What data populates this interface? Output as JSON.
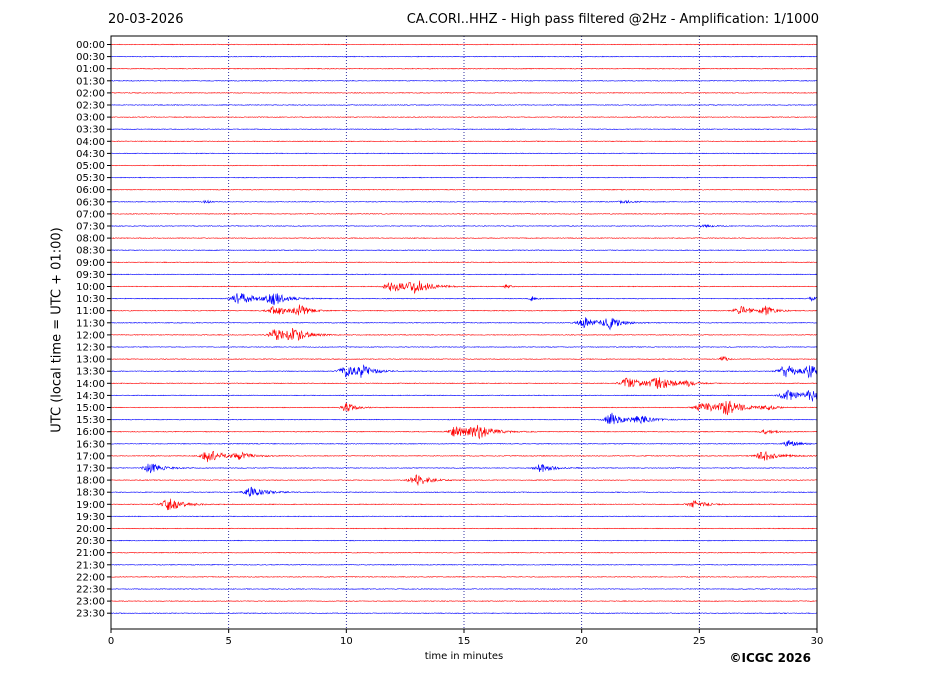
{
  "header": {
    "date": "20-03-2026",
    "title": "CA.CORI..HHZ - High pass filtered @2Hz - Amplification: 1/1000"
  },
  "footer": {
    "copyright": "©ICGC 2026"
  },
  "colors": {
    "trace_a": "#ff0000",
    "trace_b": "#0000ff",
    "axis": "#000000",
    "grid": "#00008b"
  },
  "chart_data": {
    "type": "line",
    "title": "CA.CORI..HHZ - High pass filtered @2Hz - Amplification: 1/1000",
    "xlabel": "time in minutes",
    "ylabel": "UTC (local time = UTC + 01:00)",
    "xlim": [
      0,
      30
    ],
    "x_ticks": [
      0,
      5,
      10,
      15,
      20,
      25,
      30
    ],
    "x_grid": [
      5,
      10,
      15,
      20,
      25
    ],
    "grid": "vertical dotted",
    "rows": [
      "00:00",
      "00:30",
      "01:00",
      "01:30",
      "02:00",
      "02:30",
      "03:00",
      "03:30",
      "04:00",
      "04:30",
      "05:00",
      "05:30",
      "06:00",
      "06:30",
      "07:00",
      "07:30",
      "08:00",
      "08:30",
      "09:00",
      "09:30",
      "10:00",
      "10:30",
      "11:00",
      "11:30",
      "12:00",
      "12:30",
      "13:00",
      "13:30",
      "14:00",
      "14:30",
      "15:00",
      "15:30",
      "16:00",
      "16:30",
      "17:00",
      "17:30",
      "18:00",
      "18:30",
      "19:00",
      "19:30",
      "20:00",
      "20:30",
      "21:00",
      "21:30",
      "22:00",
      "22:30",
      "23:00",
      "23:30"
    ],
    "row_colors": [
      "#ff0000",
      "#0000ff"
    ],
    "events": [
      {
        "row": "06:30",
        "minute": 4.0,
        "amp": 0.25,
        "dur": 0.3
      },
      {
        "row": "06:30",
        "minute": 21.8,
        "amp": 0.2,
        "dur": 0.6
      },
      {
        "row": "07:30",
        "minute": 25.2,
        "amp": 0.2,
        "dur": 0.6
      },
      {
        "row": "10:00",
        "minute": 12.0,
        "amp": 0.7,
        "dur": 1.0
      },
      {
        "row": "10:00",
        "minute": 13.0,
        "amp": 0.75,
        "dur": 1.0
      },
      {
        "row": "10:00",
        "minute": 16.8,
        "amp": 0.25,
        "dur": 0.3
      },
      {
        "row": "10:30",
        "minute": 5.5,
        "amp": 0.8,
        "dur": 1.0
      },
      {
        "row": "10:30",
        "minute": 6.9,
        "amp": 0.9,
        "dur": 0.8
      },
      {
        "row": "10:30",
        "minute": 17.9,
        "amp": 0.3,
        "dur": 0.3
      },
      {
        "row": "10:30",
        "minute": 29.8,
        "amp": 0.3,
        "dur": 0.4
      },
      {
        "row": "11:00",
        "minute": 7.0,
        "amp": 0.65,
        "dur": 0.9
      },
      {
        "row": "11:00",
        "minute": 8.0,
        "amp": 0.75,
        "dur": 0.6
      },
      {
        "row": "11:00",
        "minute": 26.8,
        "amp": 0.65,
        "dur": 0.8
      },
      {
        "row": "11:00",
        "minute": 27.8,
        "amp": 0.55,
        "dur": 0.6
      },
      {
        "row": "11:30",
        "minute": 20.2,
        "amp": 0.7,
        "dur": 1.0
      },
      {
        "row": "11:30",
        "minute": 21.2,
        "amp": 0.75,
        "dur": 0.7
      },
      {
        "row": "12:00",
        "minute": 7.0,
        "amp": 0.85,
        "dur": 0.8
      },
      {
        "row": "12:00",
        "minute": 7.8,
        "amp": 0.75,
        "dur": 0.9
      },
      {
        "row": "13:00",
        "minute": 26.0,
        "amp": 0.45,
        "dur": 0.3
      },
      {
        "row": "13:30",
        "minute": 10.0,
        "amp": 0.8,
        "dur": 0.8
      },
      {
        "row": "13:30",
        "minute": 10.7,
        "amp": 0.7,
        "dur": 0.7
      },
      {
        "row": "13:30",
        "minute": 28.7,
        "amp": 0.8,
        "dur": 0.9
      },
      {
        "row": "13:30",
        "minute": 29.7,
        "amp": 0.75,
        "dur": 0.6
      },
      {
        "row": "14:00",
        "minute": 22.0,
        "amp": 0.7,
        "dur": 1.0
      },
      {
        "row": "14:00",
        "minute": 23.3,
        "amp": 0.85,
        "dur": 1.0
      },
      {
        "row": "14:00",
        "minute": 24.5,
        "amp": 0.35,
        "dur": 0.4
      },
      {
        "row": "14:30",
        "minute": 28.8,
        "amp": 0.8,
        "dur": 1.0
      },
      {
        "row": "14:30",
        "minute": 29.8,
        "amp": 0.7,
        "dur": 0.7
      },
      {
        "row": "15:00",
        "minute": 10.0,
        "amp": 0.6,
        "dur": 0.6
      },
      {
        "row": "15:00",
        "minute": 25.2,
        "amp": 0.7,
        "dur": 1.0
      },
      {
        "row": "15:00",
        "minute": 26.2,
        "amp": 0.85,
        "dur": 1.0
      },
      {
        "row": "15:00",
        "minute": 27.8,
        "amp": 0.4,
        "dur": 0.5
      },
      {
        "row": "15:30",
        "minute": 21.3,
        "amp": 0.9,
        "dur": 0.8
      },
      {
        "row": "15:30",
        "minute": 22.5,
        "amp": 0.5,
        "dur": 0.8
      },
      {
        "row": "16:00",
        "minute": 14.7,
        "amp": 0.7,
        "dur": 1.0
      },
      {
        "row": "16:00",
        "minute": 15.6,
        "amp": 0.85,
        "dur": 1.0
      },
      {
        "row": "16:00",
        "minute": 27.8,
        "amp": 0.3,
        "dur": 0.6
      },
      {
        "row": "16:30",
        "minute": 28.8,
        "amp": 0.5,
        "dur": 0.6
      },
      {
        "row": "17:00",
        "minute": 4.2,
        "amp": 0.95,
        "dur": 0.8
      },
      {
        "row": "17:00",
        "minute": 5.5,
        "amp": 0.45,
        "dur": 0.8
      },
      {
        "row": "17:00",
        "minute": 27.8,
        "amp": 0.6,
        "dur": 1.0
      },
      {
        "row": "17:30",
        "minute": 1.7,
        "amp": 0.65,
        "dur": 0.8
      },
      {
        "row": "17:30",
        "minute": 18.3,
        "amp": 0.55,
        "dur": 0.8
      },
      {
        "row": "18:00",
        "minute": 13.0,
        "amp": 0.8,
        "dur": 0.8
      },
      {
        "row": "18:30",
        "minute": 6.0,
        "amp": 0.65,
        "dur": 0.9
      },
      {
        "row": "19:00",
        "minute": 2.5,
        "amp": 0.85,
        "dur": 0.9
      },
      {
        "row": "19:00",
        "minute": 24.8,
        "amp": 0.5,
        "dur": 0.8
      }
    ]
  }
}
